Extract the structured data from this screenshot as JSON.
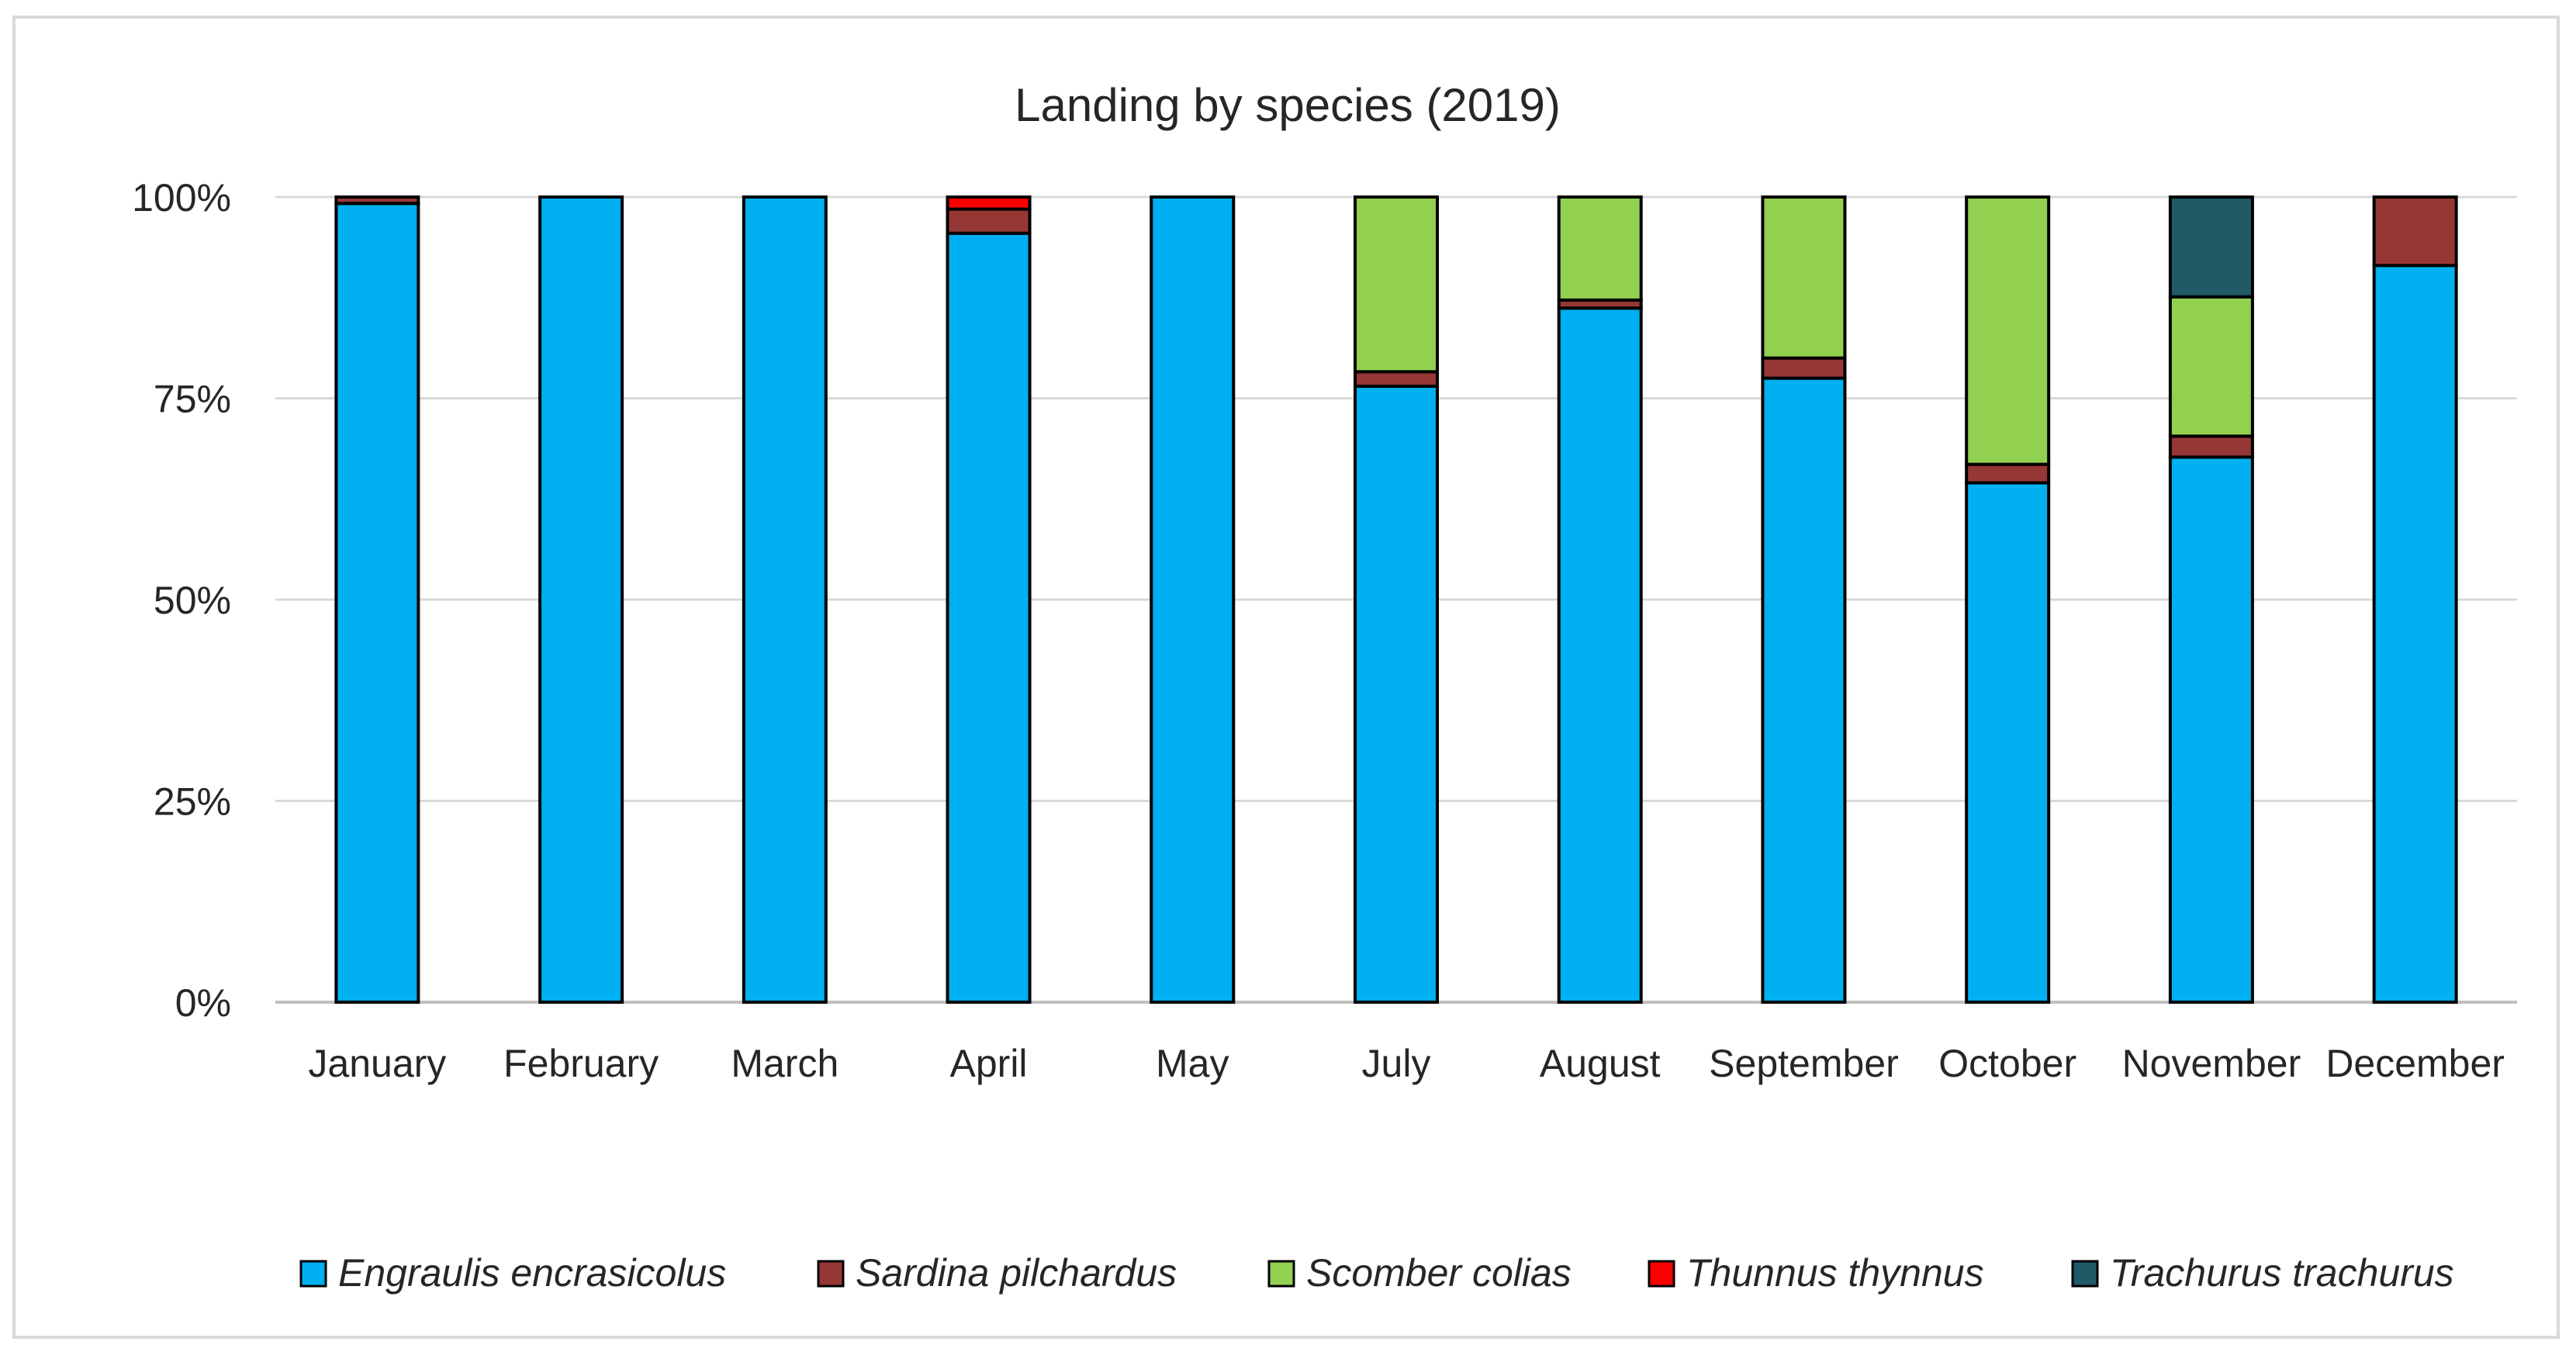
{
  "chart_data": {
    "type": "bar",
    "stacked": true,
    "normalized": true,
    "title": "Landing by species (2019)",
    "xlabel": "",
    "ylabel": "",
    "ylim": [
      0,
      100
    ],
    "y_ticks": [
      "0%",
      "25%",
      "50%",
      "75%",
      "100%"
    ],
    "y_tick_values": [
      0,
      25,
      50,
      75,
      100
    ],
    "grid": true,
    "legend_position": "bottom",
    "categories": [
      "January",
      "February",
      "March",
      "April",
      "May",
      "July",
      "August",
      "September",
      "October",
      "November",
      "December"
    ],
    "series": [
      {
        "name": "Engraulis encrasicolus",
        "color": "#00B0F0",
        "values": [
          99.2,
          100,
          100,
          95.5,
          100,
          76.5,
          86.2,
          77.5,
          64.5,
          67.7,
          91.5
        ]
      },
      {
        "name": "Sardina pilchardus",
        "color": "#953735",
        "values": [
          0.8,
          0,
          0,
          3.0,
          0,
          1.8,
          1.0,
          2.5,
          2.3,
          2.6,
          8.5
        ]
      },
      {
        "name": "Scomber colias",
        "color": "#92D050",
        "values": [
          0,
          0,
          0,
          0,
          0,
          21.7,
          12.8,
          20.0,
          33.2,
          17.3,
          0
        ]
      },
      {
        "name": "Thunnus thynnus",
        "color": "#FF0000",
        "values": [
          0,
          0,
          0,
          1.5,
          0,
          0,
          0,
          0,
          0,
          0,
          0
        ]
      },
      {
        "name": "Trachurus trachurus",
        "color": "#215967",
        "values": [
          0,
          0,
          0,
          0,
          0,
          0,
          0,
          0,
          0,
          12.4,
          0
        ]
      }
    ]
  }
}
